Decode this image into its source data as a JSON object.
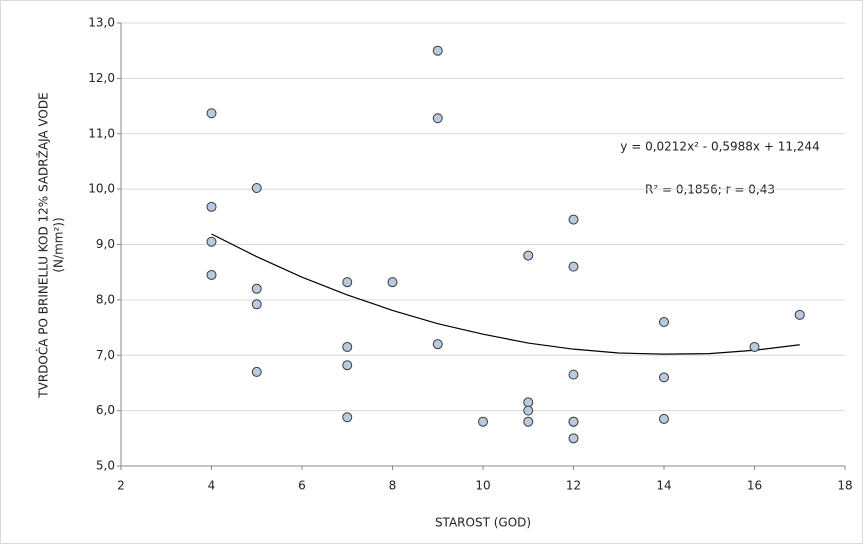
{
  "chart_data": {
    "type": "scatter",
    "x_label": "STAROST (GOD)",
    "y_label": [
      "TVRDOĆA PO BRINELLU KOD 12% SADRŽAJA VODE",
      "(N/mm²))"
    ],
    "annotations": [
      "y = 0,0212x² - 0,5988x + 11,244",
      "R² = 0,1856; r = 0,43"
    ],
    "x": [
      4,
      4,
      4,
      4,
      5,
      5,
      5,
      5,
      7,
      7,
      7,
      7,
      8,
      9,
      9,
      9,
      10,
      11,
      11,
      11,
      11,
      12,
      12,
      12,
      12,
      12,
      12,
      14,
      14,
      14,
      16,
      17
    ],
    "values": [
      11.37,
      9.68,
      9.05,
      8.45,
      10.02,
      8.2,
      7.92,
      6.7,
      8.32,
      7.15,
      6.82,
      5.88,
      8.32,
      12.5,
      11.28,
      7.2,
      5.8,
      8.8,
      6.15,
      6.0,
      5.8,
      9.45,
      8.6,
      6.65,
      5.8,
      5.8,
      5.5,
      7.6,
      6.6,
      5.85,
      7.15,
      7.73
    ],
    "color": "#b9c9e0",
    "trendline": {
      "x": [
        4,
        5,
        6,
        7,
        8,
        9,
        10,
        11,
        12,
        13,
        14,
        15,
        16,
        17
      ],
      "values": [
        9.19,
        8.78,
        8.41,
        8.09,
        7.81,
        7.57,
        7.38,
        7.22,
        7.11,
        7.04,
        7.02,
        7.03,
        7.09,
        7.19
      ],
      "color": "#000000"
    },
    "xlim": [
      2,
      18
    ],
    "xticks": [
      2,
      4,
      6,
      8,
      10,
      12,
      14,
      16,
      18
    ],
    "ylim": [
      5,
      13
    ],
    "yticks": [
      {
        "value": 5,
        "label": "5,0"
      },
      {
        "value": 6,
        "label": "6,0"
      },
      {
        "value": 7,
        "label": "7,0"
      },
      {
        "value": 8,
        "label": "8,0"
      },
      {
        "value": 9,
        "label": "9,0"
      },
      {
        "value": 10,
        "label": "10,0"
      },
      {
        "value": 11,
        "label": "11,0"
      },
      {
        "value": 12,
        "label": "12,0"
      },
      {
        "value": 13,
        "label": "13,0"
      }
    ],
    "grid": true
  }
}
